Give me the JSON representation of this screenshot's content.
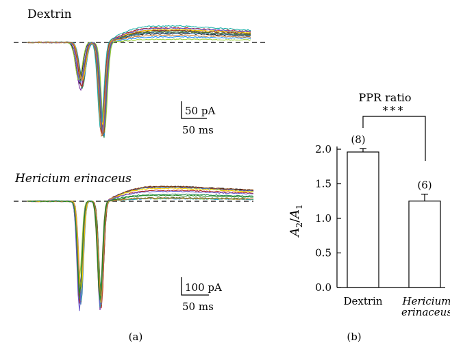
{
  "chart_data": [
    {
      "type": "line",
      "panel_label": "(a)",
      "panels": [
        {
          "title": "Dextrin",
          "title_italic": false,
          "scalebar": {
            "y_label": "50 pA",
            "x_label": "50 ms"
          },
          "trace_count": 13
        },
        {
          "title": "Hericium erinaceus",
          "title_italic": true,
          "scalebar": {
            "y_label": "100 pA",
            "x_label": "50 ms"
          },
          "trace_count": 14
        }
      ],
      "baseline": "dashed"
    },
    {
      "type": "bar",
      "panel_label": "(b)",
      "title": "PPR ratio",
      "significance": "***",
      "categories": [
        "Dextrin",
        "Hericium erinaceus"
      ],
      "category_italic": [
        false,
        true
      ],
      "values": [
        1.96,
        1.25
      ],
      "errors": [
        0.05,
        0.1
      ],
      "n_labels": [
        "(8)",
        "(6)"
      ],
      "ylabel_main": "A",
      "ylabel_num_sub": "2",
      "ylabel_den_sub": "1",
      "ylim": [
        0,
        2.0
      ],
      "yticks": [
        0.0,
        0.5,
        1.0,
        1.5,
        2.0
      ],
      "ytick_labels": [
        "0.0",
        "0.5",
        "1.0",
        "1.5",
        "2.0"
      ]
    }
  ],
  "colors": {
    "traces": [
      "#1a1a1a",
      "#7b2fa0",
      "#2e8b57",
      "#1e90ff",
      "#b22222",
      "#9acd32",
      "#4682b4",
      "#8b4513",
      "#20b2aa",
      "#ffd700",
      "#556b2f",
      "#6a5acd",
      "#cd853f",
      "#228b22"
    ],
    "bar_fill": "#ffffff",
    "bar_stroke": "#000000"
  }
}
